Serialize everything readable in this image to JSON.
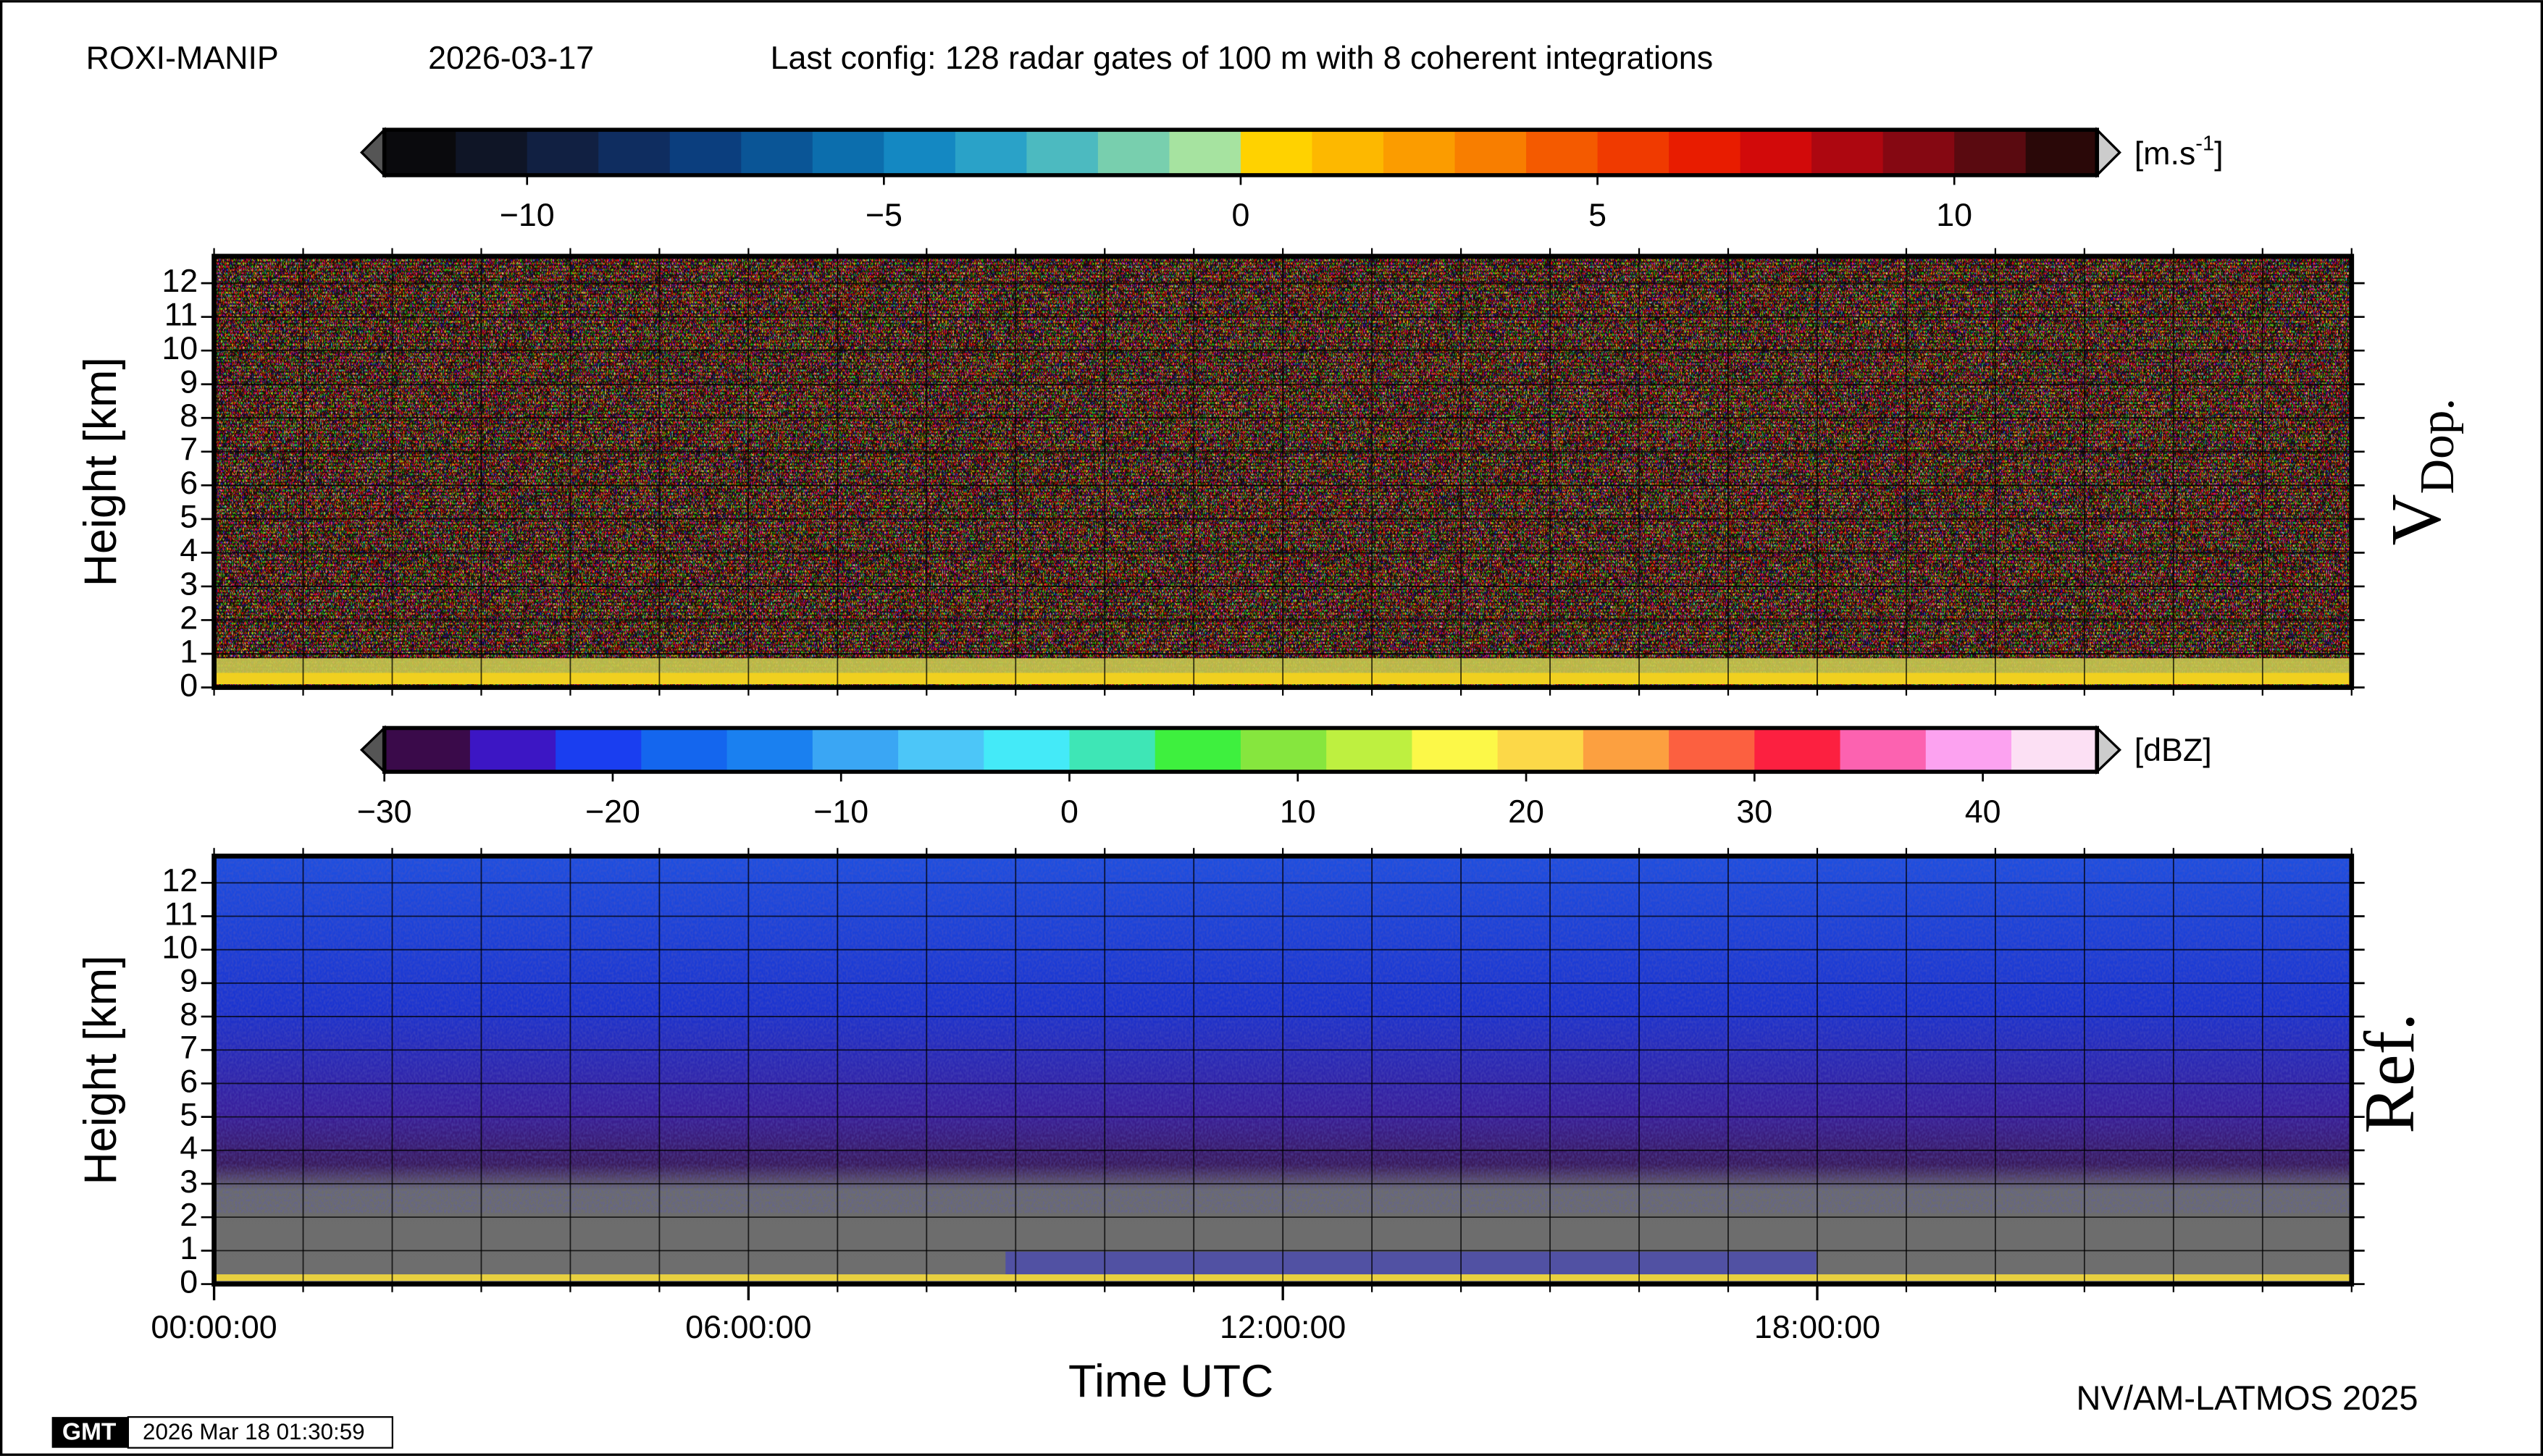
{
  "header": {
    "station": "ROXI-MANIP",
    "date": "2026-03-17",
    "config": "Last config: 128 radar gates of 100 m with 8 coherent integrations"
  },
  "chart_data": [
    {
      "type": "heatmap",
      "ylabel": "Height [km]",
      "panel_label": "V",
      "panel_label_sub": "Dop.",
      "ylim": [
        0,
        12.8
      ],
      "yticks": [
        0,
        1,
        2,
        3,
        4,
        5,
        6,
        7,
        8,
        9,
        10,
        11,
        12
      ],
      "xlim": [
        0,
        24
      ],
      "xgrid": [
        0,
        1,
        2,
        3,
        4,
        5,
        6,
        7,
        8,
        9,
        10,
        11,
        12,
        13,
        14,
        15,
        16,
        17,
        18,
        19,
        20,
        21,
        22,
        23,
        24
      ],
      "grid": true,
      "colorbar": {
        "clim": [
          -12,
          12
        ],
        "unit": "[m.s",
        "unit_superscript": "-1",
        "unit_close": "]",
        "ticks": [
          {
            "value": -10,
            "label": "−10"
          },
          {
            "value": -5,
            "label": "−5"
          },
          0,
          5,
          10
        ],
        "colors": [
          "#0a0a0d",
          "#0f1526",
          "#112042",
          "#0f2d60",
          "#0b3e7e",
          "#0a5596",
          "#0c6ead",
          "#1488c2",
          "#2aa2c8",
          "#4cbac0",
          "#78cfae",
          "#a6e3a0",
          "#ffd200",
          "#fdb800",
          "#fb9c00",
          "#f87e00",
          "#f45a00",
          "#f03a00",
          "#e81c00",
          "#d20a0a",
          "#ad0710",
          "#850812",
          "#5a0a10",
          "#2a0808"
        ]
      }
    },
    {
      "type": "heatmap",
      "ylabel": "Height [km]",
      "panel_label": "Ref.",
      "ylim": [
        0,
        12.8
      ],
      "yticks": [
        0,
        1,
        2,
        3,
        4,
        5,
        6,
        7,
        8,
        9,
        10,
        11,
        12
      ],
      "xlim": [
        0,
        24
      ],
      "xgrid": [
        0,
        1,
        2,
        3,
        4,
        5,
        6,
        7,
        8,
        9,
        10,
        11,
        12,
        13,
        14,
        15,
        16,
        17,
        18,
        19,
        20,
        21,
        22,
        23,
        24
      ],
      "grid": true,
      "xticks": [
        {
          "value": 0,
          "label": "00:00:00"
        },
        {
          "value": 6,
          "label": "06:00:00"
        },
        {
          "value": 12,
          "label": "12:00:00"
        },
        {
          "value": 18,
          "label": "18:00:00"
        }
      ],
      "xlabel": "Time UTC",
      "colorbar": {
        "clim": [
          -30,
          45
        ],
        "unit": "[dBZ]",
        "ticks": [
          {
            "value": -30,
            "label": "−30"
          },
          {
            "value": -20,
            "label": "−20"
          },
          {
            "value": -10,
            "label": "−10"
          },
          0,
          10,
          20,
          30,
          40
        ],
        "colors": [
          "#3a0a4a",
          "#3c16c4",
          "#1a3ef0",
          "#1466ee",
          "#1a80f0",
          "#3aa6f4",
          "#4cc6f8",
          "#44eaf8",
          "#3ee6b6",
          "#3ef03e",
          "#86e63e",
          "#bef040",
          "#fcf848",
          "#fcd848",
          "#fca040",
          "#fc6040",
          "#fc2040",
          "#fc62b0",
          "#fca2f0",
          "#fce0f4"
        ]
      }
    }
  ],
  "footer": {
    "credit": "NV/AM-LATMOS 2025",
    "logo": "GMT",
    "timestamp": "2026 Mar 18 01:30:59"
  }
}
